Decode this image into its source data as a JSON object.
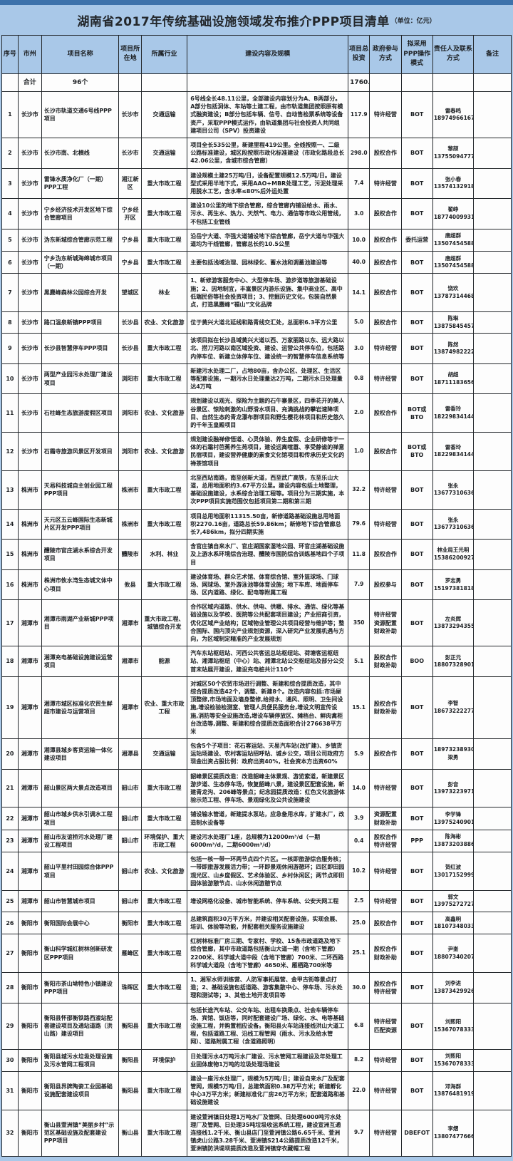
{
  "title": {
    "main": "湖南省2017年传统基础设施领域发布推介PPP项目清单",
    "unit": "（单位：亿元）"
  },
  "table": {
    "headers": [
      "序号",
      "市州",
      "项目名称",
      "项目所在地",
      "所属行业",
      "建设内容及规模",
      "项目总投资",
      "政府参与方式",
      "拟采用PPP操作模式",
      "责任人及联系方式",
      "备注"
    ],
    "summary": {
      "label": "合计",
      "count": "96个",
      "total": "1760.9"
    },
    "rows": [
      {
        "no": "1",
        "city": "长沙市",
        "name": "长沙市轨道交通6号线PPP项目",
        "loc": "长沙市",
        "industry": "交通运输",
        "content": "6号线全长48.11公里，全部建设内容划分为A、B两部分。A部分包括洞体、车站等土建工程，由市轨道集团按照原有模式融资建设；B部分包括车辆、信号、自动售检票系统等设备资产，采取PPP模式运作，由轨道集团与社会投资人共同组建项目公司（SPV）投资建设",
        "inv": "117.9",
        "gov": "特许经营",
        "mode": "BOT",
        "contact": "雷春鸣\n18974966167",
        "remark": ""
      },
      {
        "no": "2",
        "city": "长沙市",
        "name": "长沙市南、北横线",
        "loc": "长沙市",
        "industry": "交通运输",
        "content": "项目全长535公里，新建里程419公里。全线按照一、二级公路标准建设，城区段按照市政化标准建设（市政化路段总长42.06公里，含城市综合管廊）",
        "inv": "298.0",
        "gov": "股权合作",
        "mode": "BOT",
        "contact": "黎颉\n13755094777",
        "remark": ""
      },
      {
        "no": "3",
        "city": "长沙市",
        "name": "雷锋水质净化厂（一期）PPP工程",
        "loc": "湘江新区",
        "industry": "重大市政工程",
        "content": "建设规模土建25万吨/日，设备配置规模12.5万吨/日。建设型式采用半地下式，采用AAO+MBR处理工艺，污泥处理采用脱水工艺，含水率≤80%后外运处置",
        "inv": "7.4",
        "gov": "特许经营",
        "mode": "BOT",
        "contact": "张小春\n13574132918",
        "remark": ""
      },
      {
        "no": "4",
        "city": "长沙市",
        "name": "宁乡经济技术开发区地下综合管廊项目",
        "loc": "宁乡经开区",
        "industry": "重大市政工程",
        "content": "建设10公里的地下综合管廊，综合管廊内铺设给水、雨水、污水、再生水、热力、天然气、电力、通信等市政公用管线，不包括工业管线",
        "inv": "3.0",
        "gov": "股权合作",
        "mode": "BOT",
        "contact": "翟峥\n18774009931",
        "remark": ""
      },
      {
        "no": "5",
        "city": "长沙市",
        "name": "沩东新城综合管廊示范工程",
        "loc": "宁乡县",
        "industry": "重大市政工程",
        "content": "沿岳宁大道、华强大道铺设地下综合管廊，岳宁大道与华强大道均为干线管廊，管廊总长约10.5公里",
        "inv": "10.0",
        "gov": "股权合作",
        "mode": "委托运营",
        "contact": "唐超群\n13507454588",
        "remark": ""
      },
      {
        "no": "6",
        "city": "长沙市",
        "name": "宁乡沩东新城海绵城市项目（一期）",
        "loc": "宁乡县",
        "industry": "重大市政工程",
        "content": "主要包括浅域治理、园林绿化、蓄水池和调蓄池建设等",
        "inv": "40.0",
        "gov": "股权合作",
        "mode": "BOT",
        "contact": "唐超群\n13507454588",
        "remark": ""
      },
      {
        "no": "7",
        "city": "长沙市",
        "name": "黑麋峰森林公园综合开发",
        "loc": "望城区",
        "industry": "林业",
        "content": "1、新修游客服务中心、大型停车场、游步道等旅游基础设施；2、因地制宜，丰富景区内游乐设施、集中商业区、高中低端民俗等社会投资项目；3、挖掘历史文化，包装自然景点，打造黑麋峰“福山”文化品牌",
        "inv": "14.1",
        "gov": "股权合作",
        "mode": "BOT",
        "contact": "饶欢\n13787314468",
        "remark": ""
      },
      {
        "no": "8",
        "city": "长沙市",
        "name": "路口温泉新镇PPP项目",
        "loc": "长沙县",
        "industry": "农业、文化旅游",
        "content": "位于黄兴大道北延线和路青线交汇处，总面积6.3平方公里",
        "inv": "5.0",
        "gov": "股权合作",
        "mode": "BOT",
        "contact": "陈琳\n13875845457",
        "remark": ""
      },
      {
        "no": "9",
        "city": "长沙市",
        "name": "长沙县智慧停车PPP项目",
        "loc": "长沙县",
        "industry": "重大市政工程",
        "content": "该项目拟在长沙县域黄兴大道以西、万家丽路以东、远大路以北、捞刀河路以南区域投资、建设、运营公共停车位，包括路内停车位、新建立体停车位、建设统一的智慧停车信息系统等",
        "inv": "3.0",
        "gov": "特许经营",
        "mode": "BOT",
        "contact": "陈然\n13874982222",
        "remark": ""
      },
      {
        "no": "10",
        "city": "长沙市",
        "name": "两型产业园污水处理厂建设项目",
        "loc": "浏阳市",
        "industry": "重大市政工程",
        "content": "新建污水处理二厂，占地80亩，含办公区、处理区、生活区等配套设施，一期污水日处理量达2万吨，二期污水日处理量达4万吨",
        "inv": "0.8",
        "gov": "特许经营",
        "mode": "BOT",
        "contact": "胡超\n18711183656",
        "remark": ""
      },
      {
        "no": "11",
        "city": "长沙市",
        "name": "石柱峰生态旅游度假区项目",
        "loc": "浏阳市",
        "industry": "农业、文化旅游",
        "content": "规划建设以观光、探险为主题的石牛寨景区，四季花开的美人谷景区、惊险刺激的山野滑水项目、充满挑战的攀岩速降项目、自然生态的青龙瀑布群项目和野生樱花林项目和历史悠久的千年玉皇殿项目",
        "inv": "2.0",
        "gov": "股权合作",
        "mode": "BOT或\nBTO",
        "contact": "雷香玲\n18229834144",
        "remark": ""
      },
      {
        "no": "12",
        "city": "长沙市",
        "name": "石霜寺旅游风景区开发项目",
        "loc": "浏阳市",
        "industry": "农业、文化旅游",
        "content": "规划建设融禅修悟道、心灵体验、养生度假、企业研修等于一体的石霜村芭蕉养生苑项目，建设远离喧嚣、享受静谧的禅意民宿项目，建设营养健康的素食文化馆项目和传承历史文化的禅茶馆项目",
        "inv": "1.0",
        "gov": "股权合作",
        "mode": "BOT或\nBTO",
        "contact": "雷香玲\n18229834144",
        "remark": ""
      },
      {
        "no": "13",
        "city": "株洲市",
        "name": "天易科技城自主创业园工程PPP项目",
        "loc": "株洲市",
        "industry": "重大市政工程",
        "content": "北至西站南路，南至创新大道，西至武广高铁，东至乐山大道，总用地面积约3.67平方公里。建设内容包括土地整理，基础设施建设，水系综合治理工程等。项目分为三期实施，本次PPP项目实施范围仅包括项目第二期和第三期",
        "inv": "32.2",
        "gov": "特许经营",
        "mode": "BOT",
        "contact": "张永\n13677310636",
        "remark": ""
      },
      {
        "no": "14",
        "city": "株洲市",
        "name": "天元区五云峰国际生态新城片区开发PPP项目",
        "loc": "株洲市",
        "industry": "重大市政工程",
        "content": "项目总用地面积11315.50亩，新修道路基础设施总用地面积2270.16亩，道路总长59.86km；新修地下综合管廊总长7,486km，拟分四期实施",
        "inv": "79.6",
        "gov": "特许经营",
        "mode": "BOT",
        "contact": "张永\n13677310636",
        "remark": ""
      },
      {
        "no": "15",
        "city": "株洲市",
        "name": "醴陵市官庄湖水系综合开发项目",
        "loc": "醴陵市",
        "industry": "水利、林业",
        "content": "含官庄镇自来水厂、官庄湖国家湿地公园、环官庄湖基础设施及上游水系环境综合治理、醴陵市国防综合训练基地四个子项目",
        "inv": "11.8",
        "gov": "股权合作",
        "mode": "BOT",
        "contact": "林业局王光明\n15386200927",
        "remark": ""
      },
      {
        "no": "16",
        "city": "株洲市",
        "name": "株洲市攸水湾生态城文体中心项目",
        "loc": "攸县",
        "industry": "重大市政工程",
        "content": "建设体育场、群众艺术馆、体育综合馆、室外篮球场、门球场、网球场、室外游泳池等体育设施；地下车库、地面停车场、区内道路、绿化、配电等附属工程",
        "inv": "7.9",
        "gov": "股权参与",
        "mode": "BOT",
        "contact": "罗志勇\n15197381818",
        "remark": ""
      },
      {
        "no": "17",
        "city": "湘潭市",
        "name": "湘潭市雨湖产业新城PPP项目",
        "loc": "湘潭市",
        "industry": "重大市政工程、城镇综合开发",
        "content": "合作区域内道路、供水、供电、供暖、排水、通信、绿化等基础设施以及学校、医院等公共配套项目建设；产业招商引资，优化区域产业结构；区域物业管理公共项目经营与维护等；整合国际、国内顶尖产业规划资源，深入研究产业发展机遇与方向，为区域制定精准的产业发展规划",
        "inv": "350",
        "gov": "特许经营\n资源配置\n财政补助",
        "mode": "BOT",
        "contact": "左炎辉\n13873294355",
        "remark": ""
      },
      {
        "no": "18",
        "city": "湘潭市",
        "name": "湘潭充电基础设施建设运营项目",
        "loc": "湘潭市",
        "industry": "能源",
        "content": "汽车东站枢纽站、河西公共客运总站枢纽站、荷塘客运枢纽站、湘潭站枢纽（中心）站、湘潭北站公交枢纽站及部分公交首末站展开建设，建设充电桩共计110个",
        "inv": "5.1",
        "gov": "股权合作\n财政补助",
        "mode": "BOO",
        "contact": "彭正元\n18807328901",
        "remark": ""
      },
      {
        "no": "19",
        "city": "湘潭市",
        "name": "湘潭市城区标准化农贸生鲜超市建设与运营项目",
        "loc": "湘潭市",
        "industry": "农业、重大市政工程",
        "content": "对城区50个农贸市场进行调整、新建和综合提质改造，其中综合提质改造42个，调整、新建8个。改造内容包括:市场屋顶整修,市场地面及墙身整修,给排水、通风、照明、卫生间设施,增设检验检测室、管理人员便民服务台,增设文明宣传设施,消防等安全设施改造,增设车辆停放区、摊档台、鲜肉禽柜台改造等,调整、新建和综合提质改造面积合计276638平方米",
        "inv": "15.1",
        "gov": "股权合作\n财政补助",
        "mode": "BOT",
        "contact": "李智\n18673222277",
        "remark": ""
      },
      {
        "no": "20",
        "city": "湘潭市",
        "name": "湘潭县城乡客货运输一体化建设项目",
        "loc": "湘潭县",
        "industry": "交通运输",
        "content": "包含5个子项目：花石客运站、天易汽车站(改扩建)、乡镇货运站场建设、农村客运站招呼站、城乡公交，项目公司政府方现金出资占股比例：政府出资40%，社会资本方出资60%",
        "inv": "5.9",
        "gov": "股权合作",
        "mode": "BOT",
        "contact": "18973238930\n梁勇",
        "remark": ""
      },
      {
        "no": "21",
        "city": "湘潭市",
        "name": "韶山景区两大景点改造项目",
        "loc": "韶山市",
        "industry": "重大市政工程",
        "content": "韶峰景区提质改造：改造韶峰主体景观、游览索道，新建景区游步道、生态停车场，恢复韶峰八景，建设景区配套设施，新建青龙沟、206峰等景点；纪念园提质改造：红色文化旅游体验示范工程、停车场、景观绿化及公共设施建设",
        "inv": "14.0",
        "gov": "特许经营",
        "mode": "BOT",
        "contact": "彭音\n13973223971",
        "remark": ""
      },
      {
        "no": "22",
        "city": "湘潭市",
        "name": "韶山市城乡供水引调水工程项目",
        "loc": "韶山市",
        "industry": "重大市政工程",
        "content": "铺设输水管道，新建提水泵站，应急备用水库，扩建水厂，改造制水设备等",
        "inv": "3.9",
        "gov": "资源配置\n财政补助",
        "mode": "BOT",
        "contact": "李学锋\n13975240901",
        "remark": ""
      },
      {
        "no": "23",
        "city": "湘潭市",
        "name": "韶山市友谊桥污水处理厂建设工程项目",
        "loc": "韶山市",
        "industry": "环境保护、重大市政工程",
        "content": "建设污水处理厂1座，总规模为12000m³/d（一期6000m³/d，二期6000m³/d）",
        "inv": "0.4",
        "gov": "股权合作\n特许经营",
        "mode": "PPP",
        "contact": "陈海彬\n13873203886",
        "remark": ""
      },
      {
        "no": "24",
        "city": "湘潭市",
        "name": "韶山平里村田园综合体PPP项目",
        "loc": "韶山市",
        "industry": "农业、文化旅游",
        "content": "包括一核一带一环两节点四个片区。一核即旅游综合服务核；一带即旅游发展活力带；一环即景观休闲游憩环；四区即田园观光区、山乡度假区、艺术体验区、乡村休闲区；两节点即田园体验游憩节点、山水休闲游憩节点",
        "inv": "10.2",
        "gov": "特许经营",
        "mode": "BOT",
        "contact": "贺红波\n13017152999",
        "remark": ""
      },
      {
        "no": "25",
        "city": "湘潭市",
        "name": "韶山市智慧城市项目",
        "loc": "韶山市",
        "industry": "重大市政工程",
        "content": "增设网格化设备、城市智能系统、停车系统、公安天网工程",
        "inv": "2.5",
        "gov": "特许经营",
        "mode": "BOT",
        "contact": "郭文\n13975272727",
        "remark": ""
      },
      {
        "no": "26",
        "city": "衡阳市",
        "name": "衡阳国际会展中心",
        "loc": "衡阳市",
        "industry": "重大市政工程",
        "content": "总建筑面积30万平方米，并建设相关配套设施，实现会展、培训、体验等功能，并配套相关服务设施建设",
        "inv": "25.0",
        "gov": "股权合作",
        "mode": "BOT",
        "contact": "高鑫明\n18107348033",
        "remark": ""
      },
      {
        "no": "27",
        "city": "衡阳市",
        "name": "衡山科学城红树林创新研发区PPP项目",
        "loc": "雁峰区",
        "industry": "重大市政工程",
        "content": "红树林标准厂房三期、专家村、学校、15条市政道路及地下综合管廊，其中市政道路包括衡山大道一期（含地下管廊）2200米、科学城大道中段（含地下管廊）700米、二环西路科学城大道段（含地下管廊）4650米、雁栖路700米等",
        "inv": "25.1",
        "gov": "股权合作\n财政补助",
        "mode": "BOT",
        "contact": "尹崟\n18807340207",
        "remark": ""
      },
      {
        "no": "28",
        "city": "衡阳市",
        "name": "衡阳市茶山坳特色小镇建设PPP项目",
        "loc": "珠晖区",
        "industry": "重大市政工程",
        "content": "1、湘军水师训练营、人防军事拓展营、金甲古街等景点打造；2、基础设施包括道路、游客集散中心、停车场、污水处理和测试等；3、其他土地开发项目等",
        "inv": "30.0",
        "gov": "股权合作\n特许经营",
        "mode": "BOT",
        "contact": "刘李进\n13873429926",
        "remark": ""
      },
      {
        "no": "29",
        "city": "衡阳市",
        "name": "衡阳县怀邵衡铁路西渡站配套建设项目及通站道路（洪山路）建设项目",
        "loc": "衡阳县",
        "industry": "重大市政工程",
        "content": "包括长途汽车站、公交车站、出租车换乘点、社会车辆停车场、宾馆、饭店等，同时配套建设广场、绿化、水、电等基础设施工程，并购置相应设备。衡阳县火车站连接线洪山大道工程，包括道路工程、沿线工程管网（雨水、污水及给水管网）、道路附属工程（含道路照明）",
        "inv": "6.8",
        "gov": "特许经营\n匹配资源",
        "mode": "BOT",
        "contact": "刘熙阳\n15367078333",
        "remark": ""
      },
      {
        "no": "30",
        "city": "衡阳市",
        "name": "衡阳县城污水垃圾处理设施及污水管网工程项目",
        "loc": "衡阳县",
        "industry": "环境保护",
        "content": "日处理污水4万吨污水厂建设、污水管网工程建设及年处理工业固体废物1万吨的垃圾处理场建设",
        "inv": "8.2",
        "gov": "特许经营",
        "mode": "BOT",
        "contact": "刘熙阳\n15367078333",
        "remark": ""
      },
      {
        "no": "31",
        "city": "衡阳市",
        "name": "衡阳县界牌陶瓷工业园基础设施配套建设项目",
        "loc": "衡阳县",
        "industry": "重大市政工程",
        "content": "建设一座污水处理厂，规模为5万吨/日；建设自来水厂及配套管网，规模5万吨/日，总建筑面积0.38万平方米；新建孵化中心3万平方米；新建标准化厂房26万平方米；配套道路和基础设施建设",
        "inv": "22.0",
        "gov": "特许经营",
        "mode": "BOT",
        "contact": "邓海群\n13876481919",
        "remark": ""
      },
      {
        "no": "32",
        "city": "衡阳市",
        "name": "衡山县萱洲镇“美丽乡村”示范区基础设施及配套建设PPP项目",
        "loc": "衡山县",
        "industry": "重大市政工程",
        "content": "建设萱洲镇日处理1万吨水厂及管网、日处理6000吨污水处理厂及管网、日处理35吨垃圾收运系统工程，建设宣洲互通连接线1.2千米、衡山县店门至萱洲镇公路6.65千米、萱洲镇虎山公路3.28千米、萱洲镇S214公路提质改造12千米，萱洲镇防洪堤坝提质改造及萱洲镇穿衣藏帽工程",
        "inv": "9.7",
        "gov": "特许经营",
        "mode": "DBEFOT",
        "contact": "李熠\n13807477666",
        "remark": ""
      }
    ]
  }
}
